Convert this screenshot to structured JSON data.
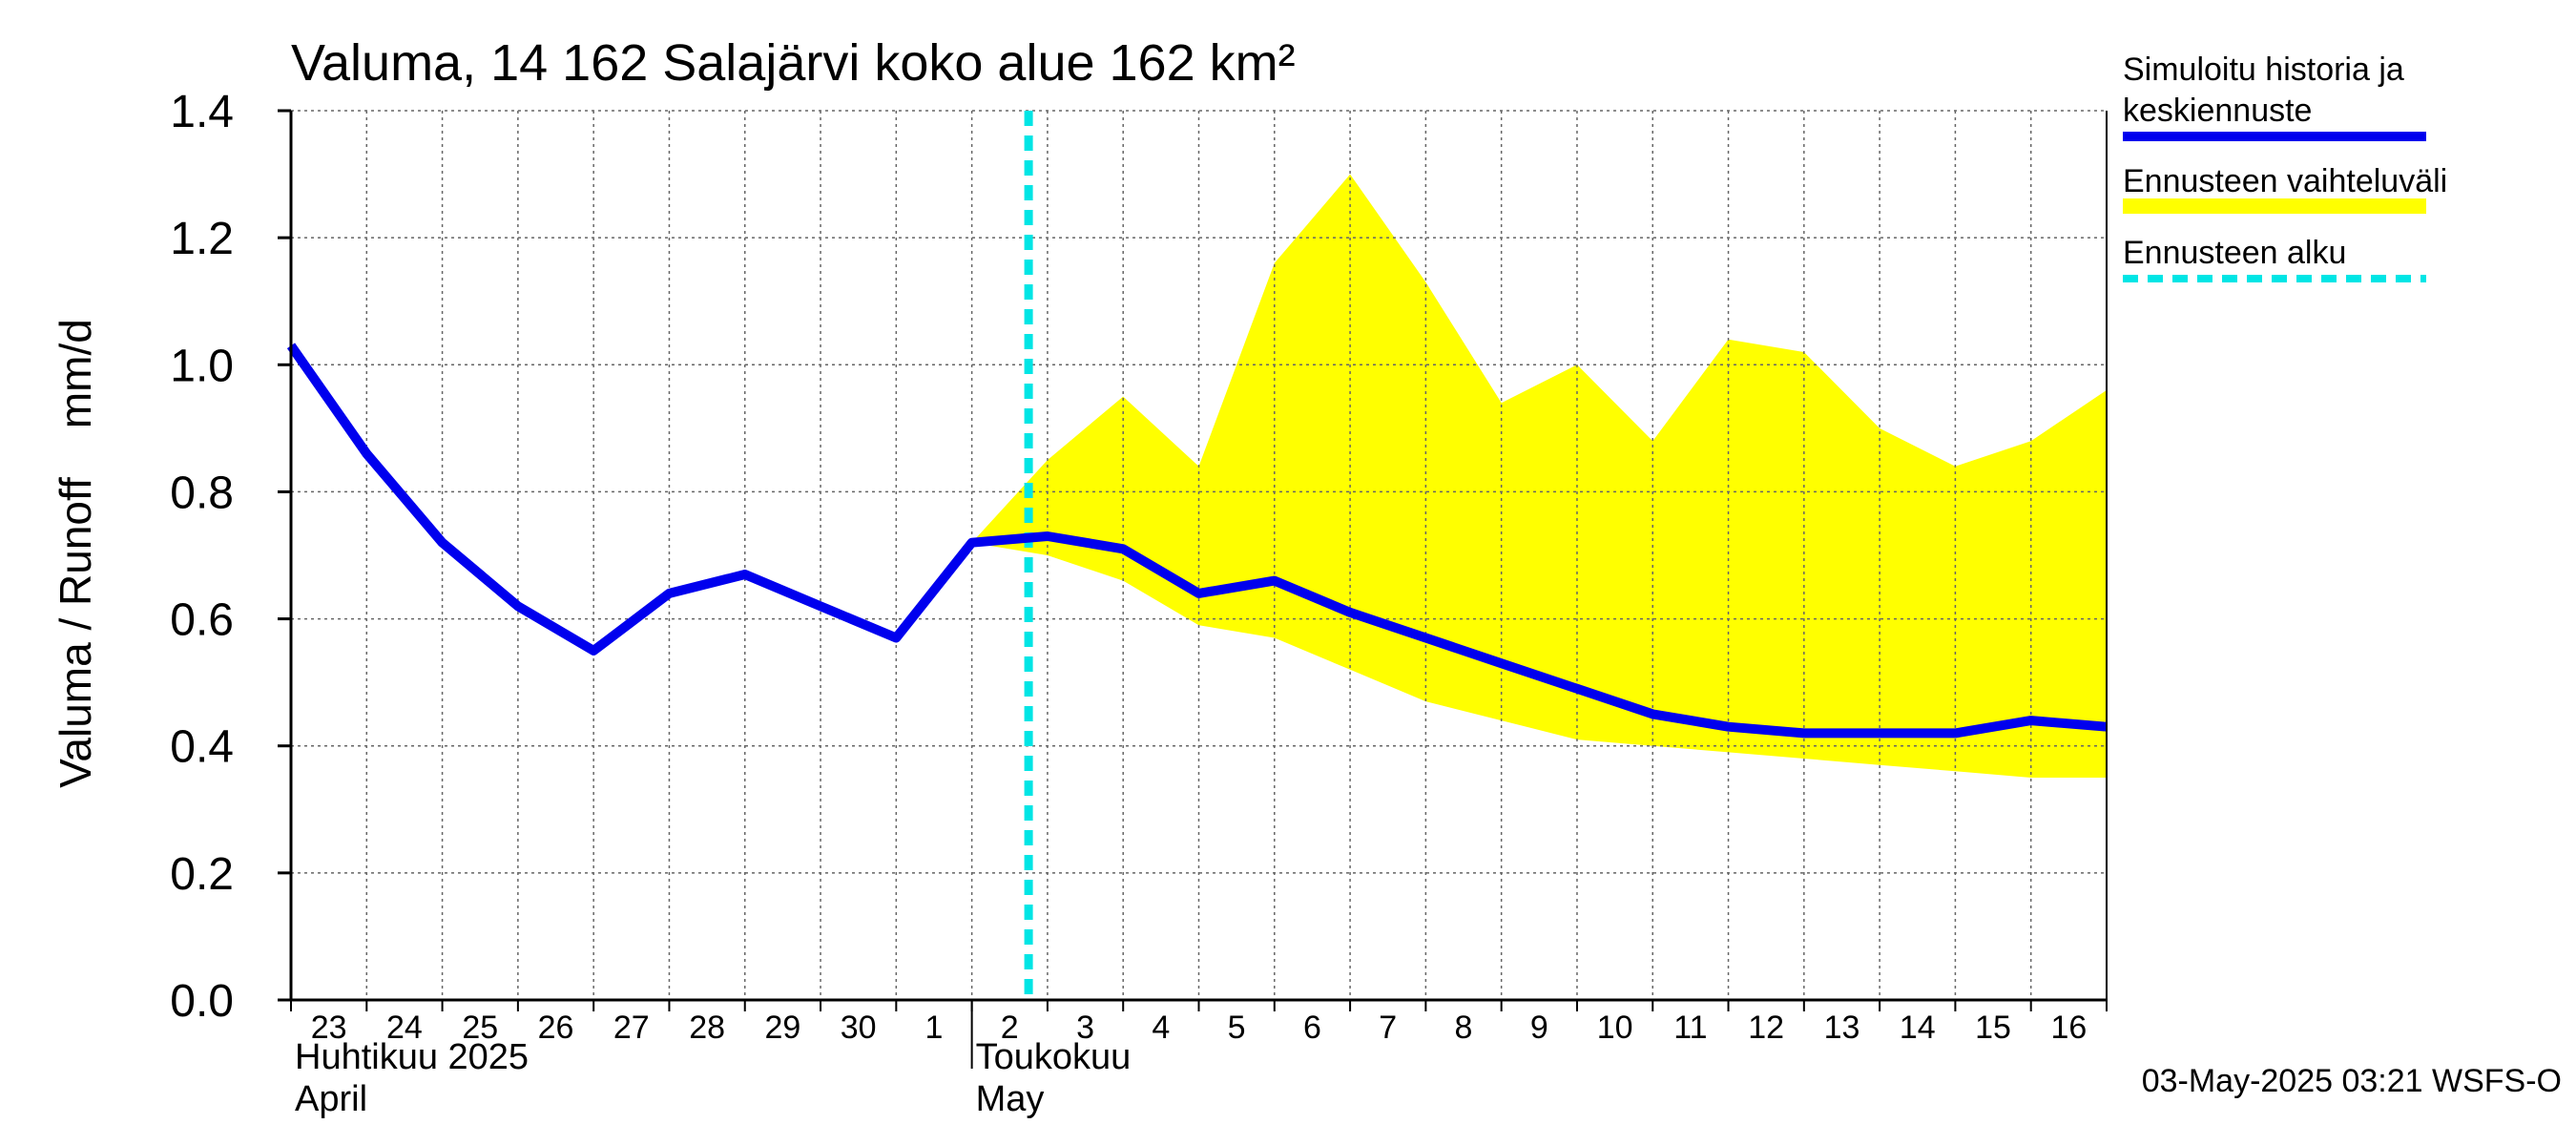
{
  "chart_data": {
    "type": "line",
    "title": "Valuma, 14 162 Salajärvi koko alue 162 km²",
    "ylabel": "Valuma / Runoff    mm/d",
    "ylim": [
      0.0,
      1.4
    ],
    "yticks": [
      "0.0",
      "0.2",
      "0.4",
      "0.6",
      "0.8",
      "1.0",
      "1.2",
      "1.4"
    ],
    "ytick_values": [
      0.0,
      0.2,
      0.4,
      0.6,
      0.8,
      1.0,
      1.2,
      1.4
    ],
    "x_dates": [
      "2025-04-23",
      "2025-04-24",
      "2025-04-25",
      "2025-04-26",
      "2025-04-27",
      "2025-04-28",
      "2025-04-29",
      "2025-04-30",
      "2025-05-01",
      "2025-05-02",
      "2025-05-03",
      "2025-05-04",
      "2025-05-05",
      "2025-05-06",
      "2025-05-07",
      "2025-05-08",
      "2025-05-09",
      "2025-05-10",
      "2025-05-11",
      "2025-05-12",
      "2025-05-13",
      "2025-05-14",
      "2025-05-15",
      "2025-05-16",
      "2025-05-17"
    ],
    "xtick_labels": [
      "23",
      "24",
      "25",
      "26",
      "27",
      "28",
      "29",
      "30",
      "1",
      "2",
      "3",
      "4",
      "5",
      "6",
      "7",
      "8",
      "9",
      "10",
      "11",
      "12",
      "13",
      "14",
      "15",
      "16"
    ],
    "month_labels": [
      {
        "fi": "Huhtikuu  2025",
        "en": "April",
        "start_date": "2025-04-23"
      },
      {
        "fi": "Toukokuu",
        "en": "May",
        "start_date": "2025-05-02"
      }
    ],
    "grid": true,
    "forecast_start": "2025-05-02T18:00",
    "series": [
      {
        "name": "Simuloitu historia ja keskiennuste",
        "color": "#0000ee",
        "x": [
          "2025-04-23",
          "2025-04-24",
          "2025-04-25",
          "2025-04-26",
          "2025-04-27",
          "2025-04-28",
          "2025-04-29",
          "2025-04-30",
          "2025-05-01",
          "2025-05-02",
          "2025-05-03",
          "2025-05-04",
          "2025-05-05",
          "2025-05-06",
          "2025-05-07",
          "2025-05-08",
          "2025-05-09",
          "2025-05-10",
          "2025-05-11",
          "2025-05-12",
          "2025-05-13",
          "2025-05-14",
          "2025-05-15",
          "2025-05-16",
          "2025-05-17"
        ],
        "values": [
          1.03,
          0.86,
          0.72,
          0.62,
          0.55,
          0.64,
          0.67,
          0.62,
          0.57,
          0.72,
          0.73,
          0.71,
          0.64,
          0.66,
          0.61,
          0.57,
          0.53,
          0.49,
          0.45,
          0.43,
          0.42,
          0.42,
          0.42,
          0.44,
          0.43
        ]
      },
      {
        "name": "Ennusteen vaihteluväli",
        "color": "#ffff00",
        "type": "band",
        "x": [
          "2025-05-02",
          "2025-05-03",
          "2025-05-04",
          "2025-05-05",
          "2025-05-06",
          "2025-05-07",
          "2025-05-08",
          "2025-05-09",
          "2025-05-10",
          "2025-05-11",
          "2025-05-12",
          "2025-05-13",
          "2025-05-14",
          "2025-05-15",
          "2025-05-16",
          "2025-05-17"
        ],
        "upper": [
          0.72,
          0.85,
          0.95,
          0.84,
          1.16,
          1.3,
          1.13,
          0.94,
          1.0,
          0.88,
          1.04,
          1.02,
          0.9,
          0.84,
          0.88,
          0.96
        ],
        "lower": [
          0.72,
          0.7,
          0.66,
          0.59,
          0.57,
          0.52,
          0.47,
          0.44,
          0.41,
          0.4,
          0.39,
          0.38,
          0.37,
          0.36,
          0.35,
          0.35
        ]
      },
      {
        "name": "Ennusteen alku",
        "color": "#00e5e5",
        "type": "vline"
      }
    ],
    "legend_position": "right",
    "footer": "03-May-2025 03:21 WSFS-O"
  }
}
